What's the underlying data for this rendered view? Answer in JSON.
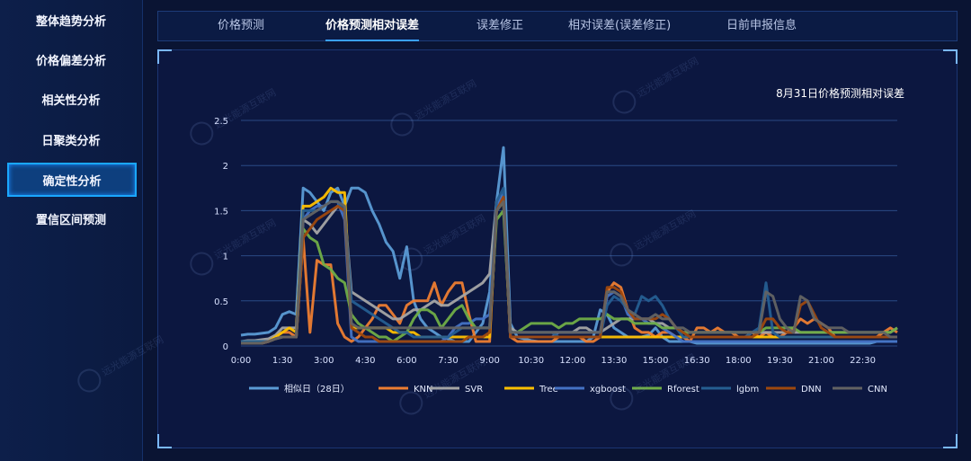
{
  "sidebar": {
    "items": [
      {
        "label": "整体趋势分析",
        "active": false
      },
      {
        "label": "价格偏差分析",
        "active": false
      },
      {
        "label": "相关性分析",
        "active": false
      },
      {
        "label": "日聚类分析",
        "active": false
      },
      {
        "label": "确定性分析",
        "active": true
      },
      {
        "label": "置信区间预测",
        "active": false
      }
    ]
  },
  "tabs": [
    {
      "label": "价格预测",
      "active": false
    },
    {
      "label": "价格预测相对误差",
      "active": true
    },
    {
      "label": "误差修正",
      "active": false
    },
    {
      "label": "相对误差(误差修正)",
      "active": false
    },
    {
      "label": "日前申报信息",
      "active": false
    }
  ],
  "watermark_text": "远光能源互联网",
  "colors": {
    "accent": "#1aa7ff",
    "background": "#0a1433",
    "grid": "#2a4a85"
  },
  "chart_data": {
    "type": "line",
    "title": "8月31日价格预测相对误差",
    "xlabel": "",
    "ylabel": "",
    "ylim": [
      0,
      2.5
    ],
    "yticks": [
      0,
      0.5,
      1,
      1.5,
      2,
      2.5
    ],
    "xtick_labels": [
      "0:00",
      "1:30",
      "3:00",
      "4:30",
      "6:00",
      "7:30",
      "9:00",
      "10:30",
      "12:00",
      "13:30",
      "15:00",
      "16:30",
      "18:00",
      "19:30",
      "21:00",
      "22:30"
    ],
    "legend_position": "bottom",
    "grid": true,
    "series": [
      {
        "name": "相似日（28日）",
        "color": "#5b9bd5",
        "values": [
          0.12,
          0.13,
          0.13,
          0.14,
          0.15,
          0.2,
          0.35,
          0.38,
          0.35,
          1.75,
          1.7,
          1.6,
          1.5,
          1.7,
          1.75,
          1.55,
          1.75,
          1.75,
          1.7,
          1.5,
          1.35,
          1.15,
          1.05,
          0.75,
          1.1,
          0.5,
          0.3,
          0.2,
          0.15,
          0.1,
          0.08,
          0.05,
          0.05,
          0.05,
          0.15,
          0.25,
          0.6,
          1.6,
          2.2,
          0.25,
          0.1,
          0.08,
          0.06,
          0.05,
          0.05,
          0.05,
          0.05,
          0.05,
          0.05,
          0.05,
          0.05,
          0.1,
          0.4,
          0.35,
          0.2,
          0.15,
          0.1,
          0.1,
          0.1,
          0.12,
          0.2,
          0.1,
          0.05,
          0.05,
          0.05,
          0.05,
          0.03,
          0.03,
          0.03,
          0.03,
          0.03,
          0.03,
          0.03,
          0.03,
          0.03,
          0.03,
          0.03,
          0.03,
          0.03,
          0.03,
          0.03,
          0.03,
          0.03,
          0.03,
          0.03,
          0.03,
          0.03,
          0.03,
          0.03,
          0.03,
          0.03,
          0.03,
          0.05,
          0.05,
          0.05,
          0.05
        ]
      },
      {
        "name": "KNN",
        "color": "#ed7d31",
        "values": [
          0.03,
          0.03,
          0.03,
          0.03,
          0.05,
          0.1,
          0.15,
          0.15,
          0.1,
          1.2,
          0.15,
          0.95,
          0.9,
          0.9,
          0.25,
          0.1,
          0.05,
          0.1,
          0.2,
          0.3,
          0.45,
          0.45,
          0.35,
          0.25,
          0.45,
          0.5,
          0.5,
          0.5,
          0.7,
          0.45,
          0.6,
          0.7,
          0.7,
          0.35,
          0.05,
          0.05,
          0.05,
          1.55,
          1.65,
          0.1,
          0.05,
          0.05,
          0.05,
          0.05,
          0.05,
          0.05,
          0.1,
          0.1,
          0.1,
          0.1,
          0.05,
          0.05,
          0.1,
          0.6,
          0.7,
          0.65,
          0.4,
          0.2,
          0.15,
          0.15,
          0.1,
          0.15,
          0.15,
          0.1,
          0.1,
          0.05,
          0.2,
          0.2,
          0.15,
          0.2,
          0.15,
          0.15,
          0.1,
          0.1,
          0.15,
          0.1,
          0.15,
          0.1,
          0.1,
          0.15,
          0.2,
          0.3,
          0.25,
          0.3,
          0.25,
          0.2,
          0.1,
          0.1,
          0.1,
          0.1,
          0.1,
          0.1,
          0.1,
          0.15,
          0.2,
          0.15
        ]
      },
      {
        "name": "SVR",
        "color": "#a5a5a5",
        "values": [
          0.05,
          0.06,
          0.06,
          0.07,
          0.08,
          0.12,
          0.2,
          0.2,
          0.2,
          1.4,
          1.35,
          1.25,
          1.35,
          1.45,
          1.55,
          1.5,
          0.6,
          0.55,
          0.5,
          0.45,
          0.4,
          0.35,
          0.3,
          0.3,
          0.35,
          0.4,
          0.4,
          0.45,
          0.5,
          0.45,
          0.45,
          0.5,
          0.55,
          0.6,
          0.65,
          0.7,
          0.8,
          1.6,
          1.7,
          0.2,
          0.15,
          0.15,
          0.15,
          0.15,
          0.15,
          0.15,
          0.15,
          0.15,
          0.15,
          0.2,
          0.2,
          0.15,
          0.15,
          0.2,
          0.25,
          0.3,
          0.3,
          0.3,
          0.3,
          0.3,
          0.25,
          0.25,
          0.2,
          0.2,
          0.15,
          0.15,
          0.15,
          0.15,
          0.15,
          0.15,
          0.15,
          0.15,
          0.15,
          0.15,
          0.15,
          0.15,
          0.15,
          0.15,
          0.15,
          0.15,
          0.15,
          0.15,
          0.15,
          0.15,
          0.15,
          0.15,
          0.15,
          0.15,
          0.15,
          0.15,
          0.15,
          0.15,
          0.15,
          0.15,
          0.15,
          0.2
        ]
      },
      {
        "name": "Tree",
        "color": "#ffc000",
        "values": [
          0.05,
          0.05,
          0.05,
          0.05,
          0.05,
          0.1,
          0.15,
          0.2,
          0.15,
          1.55,
          1.55,
          1.6,
          1.65,
          1.75,
          1.7,
          1.7,
          0.2,
          0.2,
          0.2,
          0.2,
          0.2,
          0.2,
          0.15,
          0.15,
          0.15,
          0.15,
          0.1,
          0.1,
          0.1,
          0.1,
          0.1,
          0.1,
          0.1,
          0.1,
          0.1,
          0.1,
          0.1,
          1.5,
          1.6,
          0.1,
          0.1,
          0.1,
          0.1,
          0.1,
          0.1,
          0.1,
          0.1,
          0.1,
          0.1,
          0.1,
          0.1,
          0.1,
          0.1,
          0.1,
          0.1,
          0.1,
          0.1,
          0.1,
          0.1,
          0.1,
          0.1,
          0.1,
          0.1,
          0.1,
          0.1,
          0.1,
          0.1,
          0.1,
          0.1,
          0.1,
          0.1,
          0.1,
          0.1,
          0.1,
          0.1,
          0.1,
          0.1,
          0.1,
          0.1,
          0.1,
          0.1,
          0.1,
          0.1,
          0.1,
          0.1,
          0.1,
          0.1,
          0.1,
          0.1,
          0.1,
          0.1,
          0.1,
          0.1,
          0.1,
          0.1,
          0.1
        ]
      },
      {
        "name": "xgboost",
        "color": "#4472c4",
        "values": [
          0.05,
          0.05,
          0.05,
          0.05,
          0.05,
          0.08,
          0.1,
          0.1,
          0.1,
          1.4,
          1.5,
          1.55,
          1.55,
          1.6,
          1.6,
          1.4,
          0.1,
          0.05,
          0.05,
          0.05,
          0.05,
          0.05,
          0.05,
          0.05,
          0.05,
          0.05,
          0.05,
          0.05,
          0.05,
          0.05,
          0.1,
          0.2,
          0.25,
          0.25,
          0.3,
          0.3,
          0.35,
          1.55,
          1.7,
          0.1,
          0.1,
          0.1,
          0.1,
          0.1,
          0.1,
          0.1,
          0.15,
          0.15,
          0.15,
          0.15,
          0.15,
          0.15,
          0.15,
          0.55,
          0.6,
          0.55,
          0.35,
          0.3,
          0.3,
          0.25,
          0.25,
          0.2,
          0.15,
          0.1,
          0.05,
          0.05,
          0.05,
          0.05,
          0.05,
          0.05,
          0.05,
          0.05,
          0.05,
          0.05,
          0.05,
          0.05,
          0.05,
          0.05,
          0.05,
          0.05,
          0.05,
          0.05,
          0.05,
          0.05,
          0.05,
          0.05,
          0.05,
          0.05,
          0.05,
          0.05,
          0.05,
          0.05,
          0.05,
          0.05,
          0.05,
          0.05
        ]
      },
      {
        "name": "Rforest",
        "color": "#70ad47",
        "values": [
          0.05,
          0.05,
          0.05,
          0.05,
          0.05,
          0.08,
          0.1,
          0.1,
          0.1,
          1.3,
          1.2,
          1.15,
          0.9,
          0.85,
          0.75,
          0.7,
          0.35,
          0.25,
          0.2,
          0.15,
          0.1,
          0.1,
          0.05,
          0.1,
          0.15,
          0.3,
          0.4,
          0.4,
          0.35,
          0.2,
          0.3,
          0.4,
          0.45,
          0.3,
          0.2,
          0.2,
          0.2,
          1.4,
          1.5,
          0.15,
          0.15,
          0.2,
          0.25,
          0.25,
          0.25,
          0.25,
          0.2,
          0.25,
          0.25,
          0.3,
          0.3,
          0.3,
          0.3,
          0.35,
          0.3,
          0.3,
          0.3,
          0.25,
          0.25,
          0.25,
          0.25,
          0.2,
          0.2,
          0.2,
          0.15,
          0.15,
          0.15,
          0.15,
          0.15,
          0.15,
          0.15,
          0.15,
          0.15,
          0.15,
          0.15,
          0.15,
          0.2,
          0.2,
          0.2,
          0.2,
          0.2,
          0.15,
          0.15,
          0.15,
          0.15,
          0.15,
          0.15,
          0.15,
          0.15,
          0.15,
          0.15,
          0.15,
          0.15,
          0.15,
          0.15,
          0.2
        ]
      },
      {
        "name": "lgbm",
        "color": "#255e91",
        "values": [
          0.05,
          0.05,
          0.05,
          0.05,
          0.05,
          0.08,
          0.1,
          0.1,
          0.1,
          1.5,
          1.5,
          1.5,
          1.55,
          1.6,
          1.6,
          1.5,
          0.5,
          0.45,
          0.4,
          0.35,
          0.3,
          0.25,
          0.2,
          0.15,
          0.15,
          0.1,
          0.1,
          0.1,
          0.1,
          0.1,
          0.1,
          0.15,
          0.2,
          0.2,
          0.2,
          0.2,
          0.2,
          1.6,
          1.75,
          0.15,
          0.15,
          0.15,
          0.15,
          0.15,
          0.15,
          0.15,
          0.1,
          0.1,
          0.1,
          0.1,
          0.1,
          0.1,
          0.1,
          0.45,
          0.55,
          0.5,
          0.4,
          0.35,
          0.55,
          0.5,
          0.55,
          0.45,
          0.3,
          0.2,
          0.1,
          0.1,
          0.1,
          0.1,
          0.1,
          0.1,
          0.1,
          0.1,
          0.1,
          0.1,
          0.15,
          0.2,
          0.7,
          0.15,
          0.1,
          0.1,
          0.1,
          0.1,
          0.1,
          0.1,
          0.1,
          0.1,
          0.1,
          0.1,
          0.1,
          0.1,
          0.1,
          0.1,
          0.1,
          0.1,
          0.1,
          0.1
        ]
      },
      {
        "name": "DNN",
        "color": "#9e480e",
        "values": [
          0.03,
          0.03,
          0.03,
          0.03,
          0.05,
          0.08,
          0.1,
          0.1,
          0.1,
          1.2,
          1.3,
          1.4,
          1.45,
          1.5,
          1.55,
          1.5,
          0.2,
          0.15,
          0.1,
          0.1,
          0.05,
          0.05,
          0.05,
          0.05,
          0.05,
          0.05,
          0.05,
          0.05,
          0.05,
          0.05,
          0.05,
          0.05,
          0.05,
          0.1,
          0.1,
          0.1,
          0.15,
          1.5,
          1.65,
          0.1,
          0.1,
          0.1,
          0.1,
          0.1,
          0.1,
          0.1,
          0.1,
          0.1,
          0.1,
          0.1,
          0.1,
          0.1,
          0.1,
          0.65,
          0.65,
          0.6,
          0.4,
          0.3,
          0.3,
          0.3,
          0.3,
          0.35,
          0.3,
          0.2,
          0.15,
          0.1,
          0.1,
          0.1,
          0.1,
          0.1,
          0.1,
          0.1,
          0.1,
          0.1,
          0.1,
          0.15,
          0.3,
          0.3,
          0.2,
          0.15,
          0.15,
          0.45,
          0.5,
          0.35,
          0.2,
          0.15,
          0.1,
          0.1,
          0.1,
          0.1,
          0.1,
          0.1,
          0.1,
          0.1,
          0.1,
          0.1
        ]
      },
      {
        "name": "CNN",
        "color": "#636363",
        "values": [
          0.03,
          0.03,
          0.03,
          0.03,
          0.05,
          0.08,
          0.1,
          0.1,
          0.1,
          1.4,
          1.45,
          1.5,
          1.55,
          1.6,
          1.6,
          1.55,
          0.25,
          0.2,
          0.2,
          0.2,
          0.2,
          0.2,
          0.2,
          0.2,
          0.2,
          0.2,
          0.2,
          0.2,
          0.2,
          0.2,
          0.2,
          0.2,
          0.2,
          0.2,
          0.2,
          0.2,
          0.2,
          1.5,
          1.6,
          0.15,
          0.15,
          0.15,
          0.15,
          0.15,
          0.15,
          0.15,
          0.15,
          0.15,
          0.15,
          0.15,
          0.15,
          0.15,
          0.15,
          0.6,
          0.6,
          0.55,
          0.4,
          0.35,
          0.3,
          0.3,
          0.35,
          0.3,
          0.3,
          0.2,
          0.2,
          0.15,
          0.15,
          0.15,
          0.15,
          0.15,
          0.15,
          0.15,
          0.15,
          0.15,
          0.15,
          0.15,
          0.6,
          0.55,
          0.3,
          0.2,
          0.15,
          0.55,
          0.5,
          0.3,
          0.25,
          0.2,
          0.2,
          0.2,
          0.15,
          0.15,
          0.15,
          0.15,
          0.15,
          0.15,
          0.1,
          0.1
        ]
      }
    ]
  }
}
